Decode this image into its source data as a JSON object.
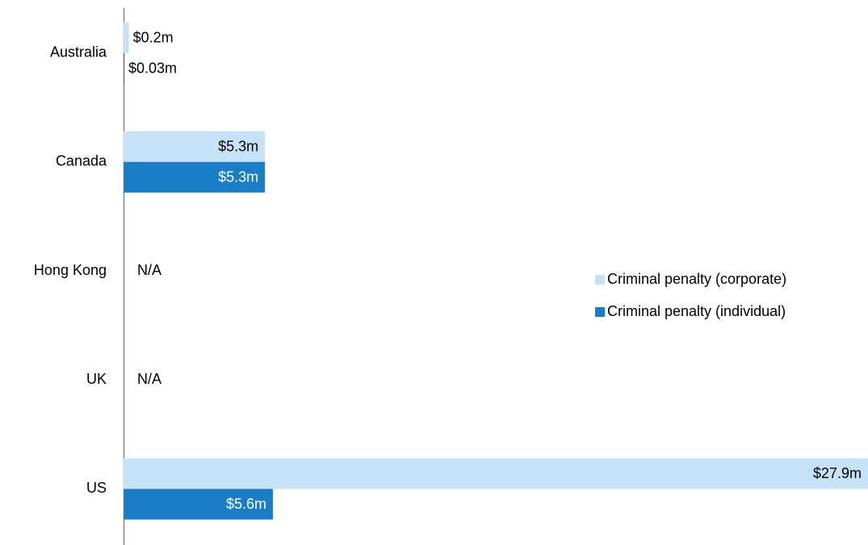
{
  "chart_data": {
    "type": "bar",
    "orientation": "horizontal",
    "categories": [
      "Australia",
      "Canada",
      "Hong Kong",
      "UK",
      "US"
    ],
    "series": [
      {
        "name": "Criminal penalty (corporate)",
        "color": "#c5e2f7",
        "values": [
          0.2,
          5.3,
          null,
          null,
          27.9
        ],
        "value_labels": [
          "$0.2m",
          "$5.3m",
          null,
          null,
          "$27.9m"
        ]
      },
      {
        "name": "Criminal penalty (individual)",
        "color": "#1a7ec6",
        "values": [
          0.03,
          5.3,
          null,
          null,
          5.6
        ],
        "value_labels": [
          "$0.03m",
          "$5.3m",
          null,
          null,
          "$5.6m"
        ]
      }
    ],
    "annotations": [
      {
        "category": "Hong Kong",
        "text": "N/A"
      },
      {
        "category": "UK",
        "text": "N/A"
      }
    ],
    "xlim": [
      0,
      27.9
    ],
    "grid": false,
    "legend": "right"
  }
}
